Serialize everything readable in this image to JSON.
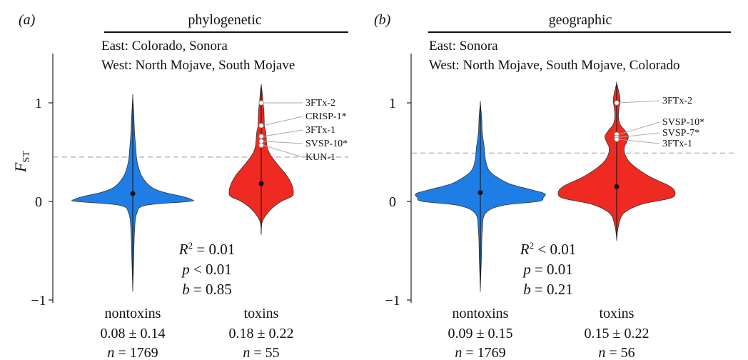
{
  "colors": {
    "nontoxin": "#1e7ee6",
    "toxin": "#ee2a22",
    "threshold": "#bbbbbb",
    "axis": "#222222"
  },
  "chart_data": [
    {
      "type": "violin",
      "panel_label": "(a)",
      "title": "phylogenetic",
      "east_line": "East: Colorado, Sonora",
      "west_line": "West: North Mojave, South Mojave",
      "ylabel_main": "F",
      "ylabel_sub": "ST",
      "ylim": [
        -1,
        1.45
      ],
      "yticks": [
        1,
        0,
        -1
      ],
      "ytick_labels": [
        "1",
        "0",
        "−1"
      ],
      "threshold": 0.45,
      "categories": [
        "nontoxins",
        "toxins"
      ],
      "category_stats": [
        "0.08 ± 0.14",
        "0.18 ± 0.22"
      ],
      "category_n": [
        "n = 1769",
        "n = 55"
      ],
      "medians": [
        0.08,
        0.18
      ],
      "ranges": [
        [
          -0.88,
          1.06
        ],
        [
          -0.32,
          1.18
        ]
      ],
      "stats_lines": [
        "R2 = 0.01",
        "p < 0.01",
        "b = 0.85"
      ],
      "outliers": [
        {
          "label": "3FTx-2",
          "value": 1.0
        },
        {
          "label": "CRISP-1*",
          "value": 0.77
        },
        {
          "label": "3FTx-1",
          "value": 0.66
        },
        {
          "label": "SVSP-10*",
          "value": 0.61
        },
        {
          "label": "KUN-1",
          "value": 0.57
        }
      ]
    },
    {
      "type": "violin",
      "panel_label": "(b)",
      "title": "geographic",
      "east_line": "East: Sonora",
      "west_line": "West: North Mojave, South Mojave, Colorado",
      "ylabel_main": "",
      "ylabel_sub": "",
      "ylim": [
        -1,
        1.45
      ],
      "yticks": [
        1,
        0,
        -1
      ],
      "ytick_labels": [
        "1",
        "0",
        "−1"
      ],
      "threshold": 0.49,
      "categories": [
        "nontoxins",
        "toxins"
      ],
      "category_stats": [
        "0.09 ± 0.15",
        "0.15 ± 0.22"
      ],
      "category_n": [
        "n = 1769",
        "n = 56"
      ],
      "medians": [
        0.09,
        0.15
      ],
      "ranges": [
        [
          -0.88,
          1.0
        ],
        [
          -0.38,
          1.2
        ]
      ],
      "stats_lines": [
        "R2 < 0.01",
        "p = 0.01",
        "b = 0.21"
      ],
      "outliers": [
        {
          "label": "3FTx-2",
          "value": 1.0
        },
        {
          "label": "SVSP-10*",
          "value": 0.68
        },
        {
          "label": "SVSP-7*",
          "value": 0.65
        },
        {
          "label": "3FTx-1",
          "value": 0.63
        }
      ]
    }
  ]
}
